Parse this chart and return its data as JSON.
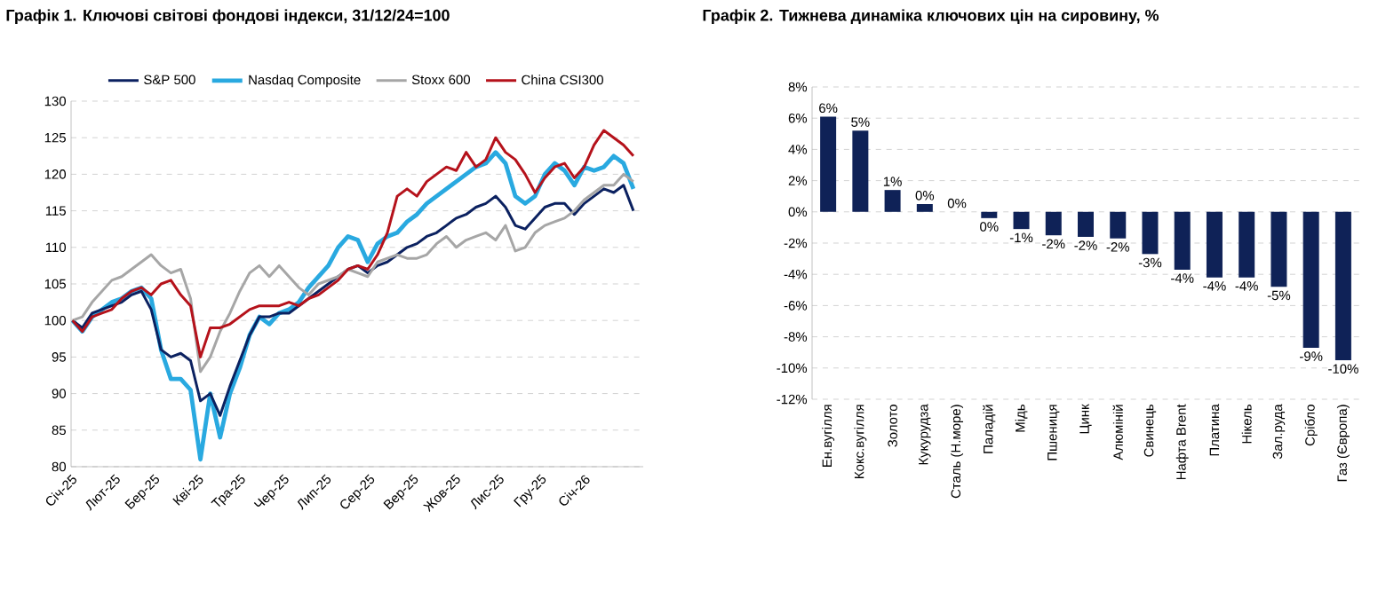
{
  "chart_data": [
    {
      "type": "line",
      "title": "Графік 1. Ключові світові фондові індекси, 31/12/24=100",
      "x": [
        "2025-01-02",
        "2025-01-09",
        "2025-01-16",
        "2025-01-23",
        "2025-01-30",
        "2025-02-06",
        "2025-02-13",
        "2025-02-20",
        "2025-02-27",
        "2025-03-06",
        "2025-03-13",
        "2025-03-20",
        "2025-03-27",
        "2025-04-03",
        "2025-04-10",
        "2025-04-17",
        "2025-04-24",
        "2025-05-01",
        "2025-05-08",
        "2025-05-15",
        "2025-05-22",
        "2025-05-29",
        "2025-06-05",
        "2025-06-12",
        "2025-06-19",
        "2025-06-26",
        "2025-07-03",
        "2025-07-10",
        "2025-07-17",
        "2025-07-24",
        "2025-07-31",
        "2025-08-07",
        "2025-08-14",
        "2025-08-21",
        "2025-08-28",
        "2025-09-04",
        "2025-09-11",
        "2025-09-18",
        "2025-09-25",
        "2025-10-02",
        "2025-10-09",
        "2025-10-16",
        "2025-10-23",
        "2025-10-30",
        "2025-11-06",
        "2025-11-13",
        "2025-11-20",
        "2025-11-27",
        "2025-12-04",
        "2025-12-11",
        "2025-12-18",
        "2025-12-25",
        "2026-01-01",
        "2026-01-08",
        "2026-01-15",
        "2026-01-22",
        "2026-01-29",
        "2026-02-05"
      ],
      "xlim": [
        "2025-01-01",
        "2026-02-12"
      ],
      "xticks": [
        {
          "value": "2025-01-01",
          "label": "Січ-25"
        },
        {
          "value": "2025-02-01",
          "label": "Лют-25"
        },
        {
          "value": "2025-03-01",
          "label": "Бер-25"
        },
        {
          "value": "2025-04-01",
          "label": "Кві-25"
        },
        {
          "value": "2025-05-01",
          "label": "Тра-25"
        },
        {
          "value": "2025-06-01",
          "label": "Чер-25"
        },
        {
          "value": "2025-07-01",
          "label": "Лип-25"
        },
        {
          "value": "2025-08-01",
          "label": "Сер-25"
        },
        {
          "value": "2025-09-01",
          "label": "Вер-25"
        },
        {
          "value": "2025-10-01",
          "label": "Жов-25"
        },
        {
          "value": "2025-11-01",
          "label": "Лис-25"
        },
        {
          "value": "2025-12-01",
          "label": "Гру-25"
        },
        {
          "value": "2026-01-01",
          "label": "Січ-26"
        }
      ],
      "ylim": [
        80,
        130
      ],
      "yticks": [
        80,
        85,
        90,
        95,
        100,
        105,
        110,
        115,
        120,
        125,
        130
      ],
      "grid": "y",
      "legend": "top",
      "series": [
        {
          "name": "S&P 500",
          "color": "#0b2160",
          "values": [
            100,
            99,
            101,
            101.5,
            102,
            102.5,
            103.5,
            104,
            101.5,
            96,
            95,
            95.5,
            94.5,
            89,
            90,
            87,
            91,
            94.5,
            98,
            100.5,
            100.5,
            101,
            101,
            102,
            103,
            104,
            105,
            106,
            107,
            107.5,
            106.5,
            107.5,
            108,
            109,
            110,
            110.5,
            111.5,
            112,
            113,
            114,
            114.5,
            115.5,
            116,
            117,
            115.5,
            113,
            112.5,
            114,
            115.5,
            116,
            116,
            114.5,
            116,
            117,
            118,
            117.5,
            118.5,
            115
          ]
        },
        {
          "name": "Nasdaq Composite",
          "color": "#29a9e0",
          "values": [
            100,
            98.5,
            100.5,
            101.5,
            102.5,
            103,
            104,
            104.5,
            103,
            96,
            92,
            92,
            90.5,
            81,
            90,
            84,
            90,
            93.5,
            98,
            100.5,
            99.5,
            101,
            101.5,
            102.5,
            104.5,
            106,
            107.5,
            110,
            111.5,
            111,
            108,
            110.5,
            111.5,
            112,
            113.5,
            114.5,
            116,
            117,
            118,
            119,
            120,
            121,
            121.5,
            123,
            121.5,
            117,
            116,
            117,
            120,
            121.5,
            120.5,
            118.5,
            121,
            120.5,
            121,
            122.5,
            121.5,
            118
          ]
        },
        {
          "name": "Stoxx 600",
          "color": "#a6a6a6",
          "values": [
            100,
            100.5,
            102.5,
            104,
            105.5,
            106,
            107,
            108,
            109,
            107.5,
            106.5,
            107,
            103,
            93,
            95,
            98.5,
            101,
            104,
            106.5,
            107.5,
            106,
            107.5,
            106,
            104.5,
            103.5,
            105,
            105.5,
            106,
            107,
            106.5,
            106,
            108,
            108.5,
            109,
            108.5,
            108.5,
            109,
            110.5,
            111.5,
            110,
            111,
            111.5,
            112,
            111,
            113,
            109.5,
            110,
            112,
            113,
            113.5,
            114,
            115,
            116.5,
            117.5,
            118.5,
            118.5,
            120,
            119
          ]
        },
        {
          "name": "China CSI300",
          "color": "#b5121b",
          "values": [
            100,
            98.5,
            100.5,
            101,
            101.5,
            103,
            104,
            104.5,
            103.5,
            105,
            105.5,
            103.5,
            102,
            95,
            99,
            99,
            99.5,
            100.5,
            101.5,
            102,
            102,
            102,
            102.5,
            102,
            103,
            103.5,
            104.5,
            105.5,
            107,
            107.5,
            107,
            109,
            112,
            117,
            118,
            117,
            119,
            120,
            121,
            120.5,
            123,
            121,
            122,
            125,
            123,
            122,
            120,
            117.5,
            119.5,
            121,
            121.5,
            119.5,
            121,
            124,
            126,
            125,
            124,
            122.5
          ]
        }
      ]
    },
    {
      "type": "bar",
      "title": "Графік 2. Тижнева динаміка ключових цін на сировину, %",
      "categories": [
        "Ен.вугілля",
        "Кокс.вугілля",
        "Золото",
        "Кукурудза",
        "Сталь (Н.море)",
        "Паладій",
        "Мідь",
        "Пшениця",
        "Цинк",
        "Алюміній",
        "Свинець",
        "Нафта Brent",
        "Платина",
        "Нікель",
        "Зал.руда",
        "Срібло",
        "Газ (Європа)"
      ],
      "values": [
        6.1,
        5.2,
        1.4,
        0.5,
        0,
        -0.4,
        -1.1,
        -1.5,
        -1.6,
        -1.7,
        -2.7,
        -3.7,
        -4.2,
        -4.2,
        -4.8,
        -8.7,
        -9.5
      ],
      "value_labels": [
        "6%",
        "5%",
        "1%",
        "0%",
        "0%",
        "0%",
        "-1%",
        "-2%",
        "-2%",
        "-2%",
        "-3%",
        "-4%",
        "-4%",
        "-4%",
        "-5%",
        "-9%",
        "-10%"
      ],
      "color": "#0f2257",
      "ylim": [
        -12,
        8
      ],
      "yticks": [
        {
          "value": -12,
          "label": "-12%"
        },
        {
          "value": -10,
          "label": "-10%"
        },
        {
          "value": -8,
          "label": "-8%"
        },
        {
          "value": -6,
          "label": "-6%"
        },
        {
          "value": -4,
          "label": "-4%"
        },
        {
          "value": -2,
          "label": "-2%"
        },
        {
          "value": 0,
          "label": "0%"
        },
        {
          "value": 2,
          "label": "2%"
        },
        {
          "value": 4,
          "label": "4%"
        },
        {
          "value": 6,
          "label": "6%"
        },
        {
          "value": 8,
          "label": "8%"
        }
      ],
      "grid": "y"
    }
  ]
}
